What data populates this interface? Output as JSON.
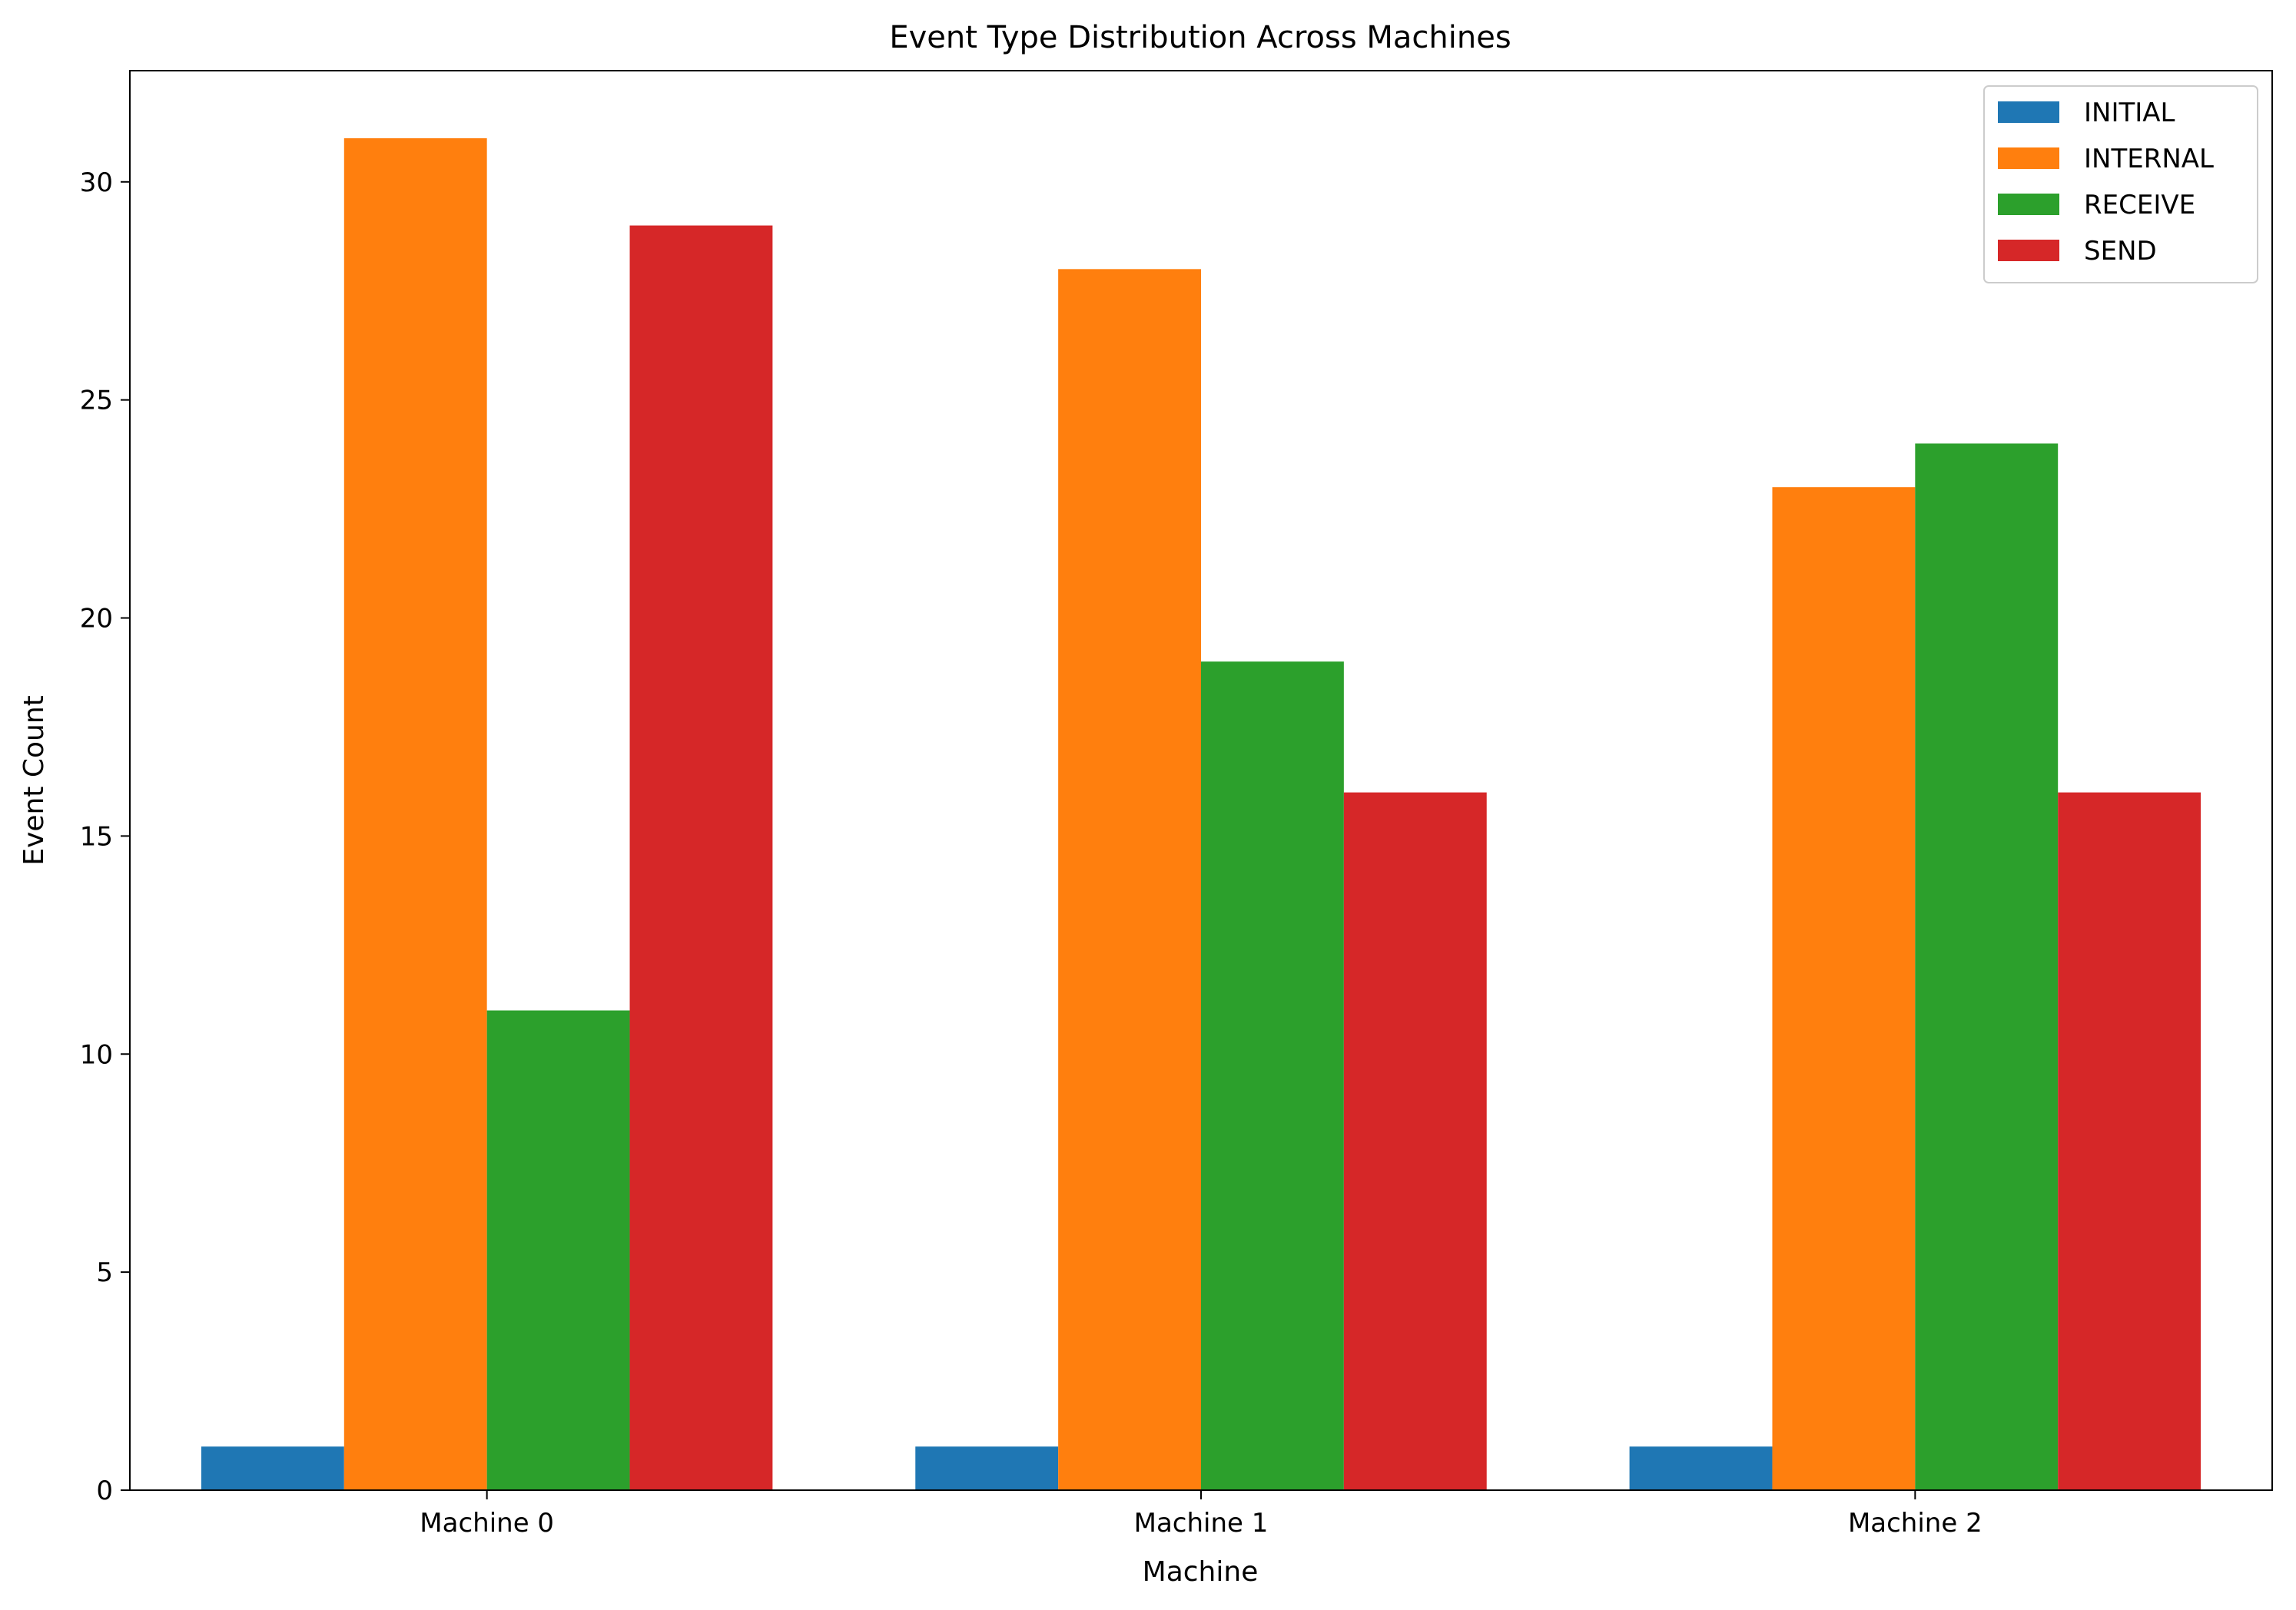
{
  "chart_data": {
    "type": "bar",
    "title": "Event Type Distribution Across Machines",
    "xlabel": "Machine",
    "ylabel": "Event Count",
    "categories": [
      "Machine 0",
      "Machine 1",
      "Machine 2"
    ],
    "series": [
      {
        "name": "INITIAL",
        "color": "#1f77b4",
        "values": [
          1,
          1,
          1
        ]
      },
      {
        "name": "INTERNAL",
        "color": "#ff7f0e",
        "values": [
          31,
          28,
          23
        ]
      },
      {
        "name": "RECEIVE",
        "color": "#2ca02c",
        "values": [
          11,
          19,
          24
        ]
      },
      {
        "name": "SEND",
        "color": "#d62728",
        "values": [
          29,
          16,
          16
        ]
      }
    ],
    "ylim": [
      0,
      32.55
    ],
    "yticks": [
      0,
      5,
      10,
      15,
      20,
      25,
      30
    ],
    "grid": false,
    "legend_position": "top-right"
  }
}
